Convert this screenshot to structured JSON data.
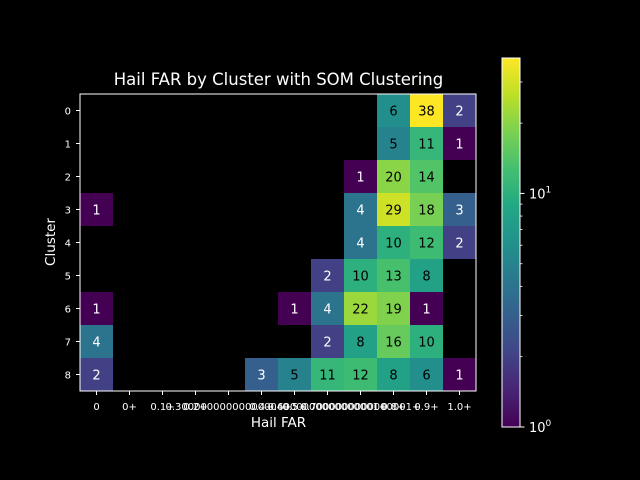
{
  "chart_data": {
    "type": "heatmap",
    "title": "Hail FAR by Cluster with SOM Clustering",
    "xlabel": "Hail FAR",
    "ylabel": "Cluster",
    "x_categories": [
      "0",
      "0+",
      "0.1+",
      "0.2+",
      "0.30000000000000004+",
      "0.4+",
      "0.5+",
      "0.6000000000000001+",
      "0.7000000000000001+",
      "0.8+",
      "0.9+",
      "1.0+"
    ],
    "x_tick_labels": [
      "0",
      "0+",
      "0.1+",
      "0.2+",
      "0.30000000000000004+",
      "0.4+",
      "0.5+",
      "0.6000000000000001+",
      "0.7000000000000001+",
      "0.8+",
      "0.9+",
      "1.0+"
    ],
    "y_categories": [
      "0",
      "1",
      "2",
      "3",
      "4",
      "5",
      "6",
      "7",
      "8"
    ],
    "values": [
      [
        null,
        null,
        null,
        null,
        null,
        null,
        null,
        null,
        null,
        6,
        38,
        2
      ],
      [
        null,
        null,
        null,
        null,
        null,
        null,
        null,
        null,
        null,
        5,
        11,
        1
      ],
      [
        null,
        null,
        null,
        null,
        null,
        null,
        null,
        null,
        1,
        20,
        14,
        null
      ],
      [
        1,
        null,
        null,
        null,
        null,
        null,
        null,
        null,
        4,
        29,
        18,
        3
      ],
      [
        null,
        null,
        null,
        null,
        null,
        null,
        null,
        null,
        4,
        10,
        12,
        2
      ],
      [
        null,
        null,
        null,
        null,
        null,
        null,
        null,
        2,
        10,
        13,
        8,
        null
      ],
      [
        1,
        null,
        null,
        null,
        null,
        null,
        1,
        4,
        22,
        19,
        1,
        null
      ],
      [
        4,
        null,
        null,
        null,
        null,
        null,
        null,
        2,
        8,
        16,
        10,
        null
      ],
      [
        2,
        null,
        null,
        null,
        null,
        3,
        5,
        11,
        12,
        8,
        6,
        1
      ]
    ],
    "colorbar": {
      "scale": "log",
      "colormap": "viridis",
      "range": [
        1,
        38
      ],
      "tick_labels": [
        {
          "value": 1,
          "base": "10",
          "exp": "0"
        },
        {
          "value": 10,
          "base": "10",
          "exp": "1"
        }
      ]
    },
    "background_color": "#000000",
    "text_color": "#ffffff",
    "grid": false
  }
}
